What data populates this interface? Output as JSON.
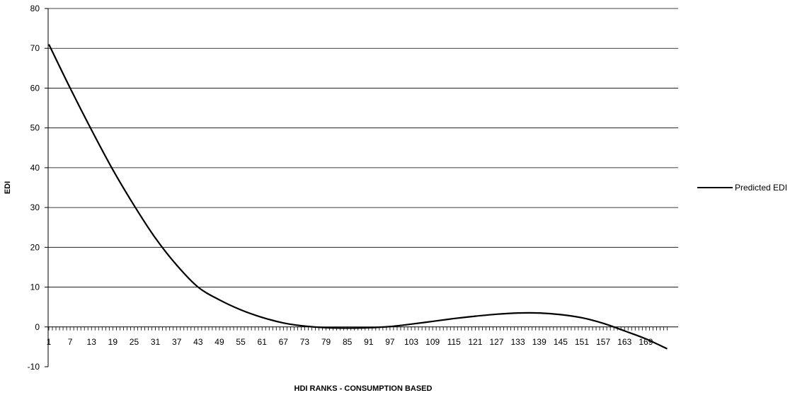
{
  "chart_data": {
    "type": "line",
    "title": "",
    "xlabel": "HDI RANKS - CONSUMPTION BASED",
    "ylabel": "EDI",
    "ylim": [
      -10,
      80
    ],
    "yticks": [
      -10,
      0,
      10,
      20,
      30,
      40,
      50,
      60,
      70,
      80
    ],
    "xlim": [
      1,
      175
    ],
    "xtick_labels": [
      1,
      7,
      13,
      19,
      25,
      31,
      37,
      43,
      49,
      55,
      61,
      67,
      73,
      79,
      85,
      91,
      97,
      103,
      109,
      115,
      121,
      127,
      133,
      139,
      145,
      151,
      157,
      163,
      169
    ],
    "grid": "horizontal",
    "legend_position": "right",
    "series": [
      {
        "name": "Predicted EDI",
        "color": "#000000",
        "x": [
          1,
          7,
          13,
          19,
          25,
          31,
          37,
          43,
          49,
          55,
          61,
          67,
          73,
          79,
          85,
          91,
          97,
          103,
          109,
          115,
          121,
          127,
          133,
          139,
          145,
          151,
          157,
          163,
          169,
          175
        ],
        "y": [
          71,
          60,
          49.5,
          39.5,
          30.5,
          22.3,
          15.5,
          10,
          6.8,
          4.3,
          2.4,
          1,
          0.2,
          -0.2,
          -0.3,
          -0.2,
          0.1,
          0.7,
          1.4,
          2.1,
          2.7,
          3.2,
          3.5,
          3.5,
          3.1,
          2.3,
          0.9,
          -1,
          -3,
          -5.5
        ]
      }
    ]
  }
}
